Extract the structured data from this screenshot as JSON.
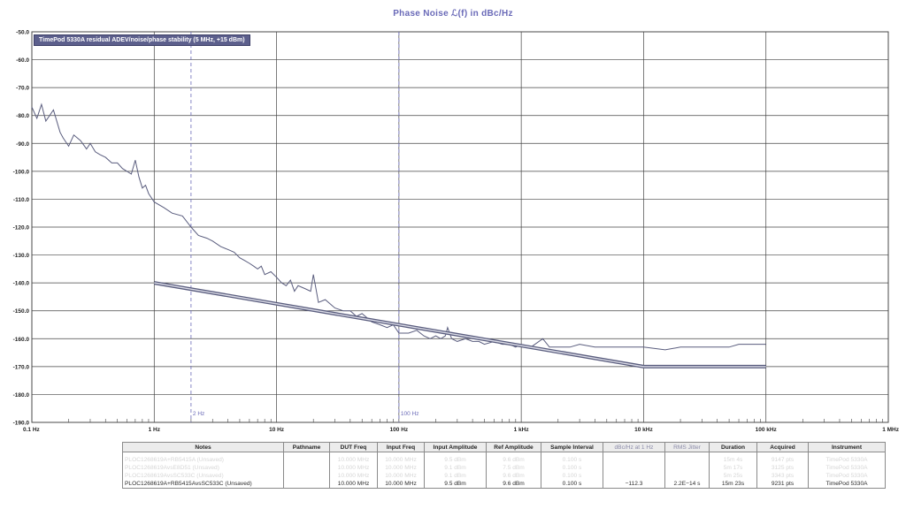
{
  "chart_data": {
    "type": "line",
    "title": "Phase  Noise ℒ(f) in dBc/Hz",
    "xscale": "log",
    "xlim": [
      0.1,
      1000000
    ],
    "ylim": [
      -190,
      -50
    ],
    "grid": true,
    "x_tick_labels": [
      "0.1 Hz",
      "1 Hz",
      "10 Hz",
      "100 Hz",
      "1 kHz",
      "10 kHz",
      "100 kHz",
      "1 MHz"
    ],
    "x_tick_values": [
      0.1,
      1,
      10,
      100,
      1000,
      10000,
      100000,
      1000000
    ],
    "y_tick_values": [
      -50,
      -60,
      -70,
      -80,
      -90,
      -100,
      -110,
      -120,
      -130,
      -140,
      -150,
      -160,
      -170,
      -180,
      -190
    ],
    "y_tick_labels": [
      "-50.0",
      "-60.0",
      "-70.0",
      "-80.0",
      "-90.0",
      "-100.0",
      "-110.0",
      "-120.0",
      "-130.0",
      "-140.0",
      "-150.0",
      "-160.0",
      "-170.0",
      "-180.0",
      "-190.0"
    ],
    "markers": [
      {
        "x": 2,
        "label": "2 Hz"
      },
      {
        "x": 100,
        "label": "100 Hz"
      }
    ],
    "legend": "TimePod 5330A residual ADEV/noise/phase stability (5 MHz, +15 dBm)",
    "legend_placement": "top-left",
    "series": [
      {
        "color": "#5a5d7e",
        "x": [
          0.1,
          0.11,
          0.12,
          0.13,
          0.15,
          0.17,
          0.18,
          0.2,
          0.22,
          0.25,
          0.28,
          0.3,
          0.33,
          0.36,
          0.4,
          0.45,
          0.5,
          0.55,
          0.6,
          0.65,
          0.7,
          0.75,
          0.8,
          0.85,
          0.9,
          1.0,
          1.2,
          1.4,
          1.7,
          2.0,
          2.3,
          2.7,
          3.0,
          3.5,
          4.0,
          4.5,
          5.0,
          5.5,
          6.0,
          6.5,
          7.0,
          7.5,
          8.0,
          9.0,
          10,
          11,
          12,
          13,
          14,
          15,
          17,
          19,
          20,
          22,
          25,
          30,
          35,
          40,
          45,
          50,
          60,
          70,
          80,
          90,
          100,
          120,
          140,
          160,
          180,
          200,
          220,
          240,
          250,
          270,
          300,
          350,
          400,
          450,
          500,
          600,
          700,
          800,
          900,
          1000,
          1200,
          1500,
          1700,
          2000,
          2500,
          3000,
          4000,
          5000,
          7000,
          10000,
          15000,
          20000,
          30000,
          40000,
          50000,
          60000,
          70000,
          80000,
          100000
        ],
        "y": [
          -77,
          -81,
          -76,
          -82,
          -78,
          -86,
          -88,
          -91,
          -87,
          -89,
          -92,
          -90,
          -93,
          -94,
          -95,
          -97,
          -97,
          -99,
          -100,
          -101,
          -96,
          -102,
          -106,
          -105,
          -108,
          -111,
          -113,
          -115,
          -116,
          -120,
          -123,
          -124,
          -125,
          -127,
          -128,
          -129,
          -131,
          -132,
          -133,
          -134,
          -135,
          -134,
          -137,
          -136,
          -138,
          -140,
          -141,
          -139,
          -143,
          -141,
          -142,
          -143,
          -137,
          -147,
          -146,
          -149,
          -150,
          -150,
          -152,
          -151,
          -154,
          -155,
          -156,
          -155,
          -158,
          -158,
          -157,
          -159,
          -160,
          -159,
          -160,
          -159,
          -156,
          -160,
          -161,
          -160,
          -161,
          -161,
          -162,
          -161,
          -162,
          -162,
          -163,
          -162,
          -163,
          -160,
          -163,
          -163,
          -163,
          -162,
          -163,
          -163,
          -163,
          -163,
          -164,
          -163,
          -163,
          -163,
          -163,
          -162,
          -162,
          -162,
          -162
        ]
      },
      {
        "color": "#5a5d7e",
        "x": [
          1,
          10000,
          100000
        ],
        "y": [
          -140,
          -170,
          -170
        ]
      }
    ]
  },
  "table": {
    "headers": [
      "Notes",
      "Pathname",
      "DUT Freq",
      "Input Freq",
      "Input Amplitude",
      "Ref Amplitude",
      "Sample Interval",
      "dBc/Hz at 1 Hz",
      "RMS Jitter",
      "Duration",
      "Acquired",
      "Instrument"
    ],
    "ghost_rows": [
      [
        "PLOC1268619A+RB5415A (Unsaved)",
        "",
        "10.000 MHz",
        "10.000 MHz",
        "9.5 dBm",
        "9.6 dBm",
        "0.100 s",
        "",
        "",
        "15m 4s",
        "9147 pts",
        "TimePod 5330A"
      ],
      [
        "PLOC1268619AvsE8D51 (Unsaved)",
        "",
        "10.000 MHz",
        "10.000 MHz",
        "9.1 dBm",
        "7.5 dBm",
        "0.100 s",
        "",
        "",
        "5m 17s",
        "3125 pts",
        "TimePod 5330A"
      ],
      [
        "PLOC1268619AvsSC533C (Unsaved)",
        "",
        "10.000 MHz",
        "10.000 MHz",
        "9.1 dBm",
        "9.6 dBm",
        "0.100 s",
        "",
        "",
        "5m 25s",
        "3343 pts",
        "TimePod 5330A"
      ]
    ],
    "active_row": [
      "PLOC1268619A+RB5415AvsSC533C (Unsaved)",
      "",
      "10.000 MHz",
      "10.000 MHz",
      "9.5 dBm",
      "9.6 dBm",
      "0.100 s",
      "−112.3",
      "2.2E−14 s",
      "15m 23s",
      "9231 pts",
      "TimePod 5330A"
    ]
  }
}
